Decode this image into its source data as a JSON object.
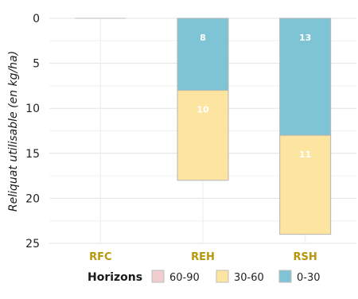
{
  "chart_data": {
    "type": "bar",
    "stacked": true,
    "y_axis_reversed": true,
    "ylabel": "Reliquat utilisable (en kg/ha)",
    "xlabel": "",
    "ylim": [
      0,
      25
    ],
    "yticks": [
      0,
      5,
      10,
      15,
      20,
      25
    ],
    "categories": [
      "RFC",
      "REH",
      "RSH"
    ],
    "category_label_color": "#b8960c",
    "series": [
      {
        "name": "0-30",
        "color": "#7ec4d4",
        "values": [
          0,
          8,
          13
        ]
      },
      {
        "name": "30-60",
        "color": "#fde4a0",
        "values": [
          0,
          10,
          11
        ]
      },
      {
        "name": "60-90",
        "color": "#f2cdd0",
        "values": [
          0,
          0,
          0
        ]
      }
    ],
    "data_labels": true,
    "grid": true,
    "legend": {
      "title": "Horizons",
      "placement": "bottom",
      "items": [
        "60-90",
        "30-60",
        "0-30"
      ]
    }
  }
}
